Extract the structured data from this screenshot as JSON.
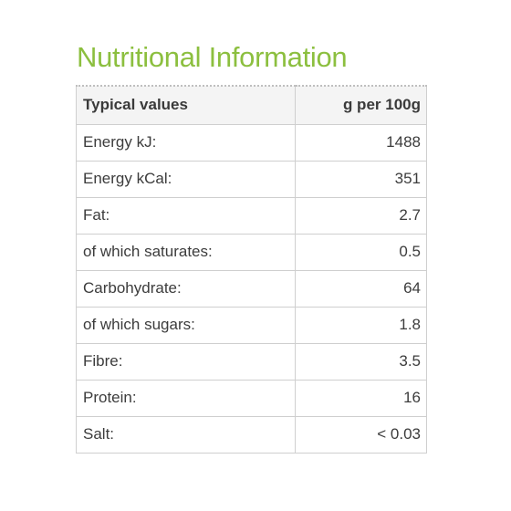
{
  "title": "Nutritional Information",
  "table": {
    "headers": {
      "label": "Typical values",
      "value": "g per 100g"
    },
    "rows": [
      {
        "label": "Energy kJ:",
        "value": "1488"
      },
      {
        "label": "Energy kCal:",
        "value": "351"
      },
      {
        "label": "Fat:",
        "value": "2.7"
      },
      {
        "label": "of which saturates:",
        "value": "0.5"
      },
      {
        "label": "Carbohydrate:",
        "value": "64"
      },
      {
        "label": "of which sugars:",
        "value": "1.8"
      },
      {
        "label": "Fibre:",
        "value": "3.5"
      },
      {
        "label": "Protein:",
        "value": "16"
      },
      {
        "label": "Salt:",
        "value": "< 0.03"
      }
    ]
  },
  "colors": {
    "title": "#8cbf3f",
    "text": "#3c3c3c",
    "border": "#cfcfcf",
    "header_bg": "#f4f4f4"
  }
}
